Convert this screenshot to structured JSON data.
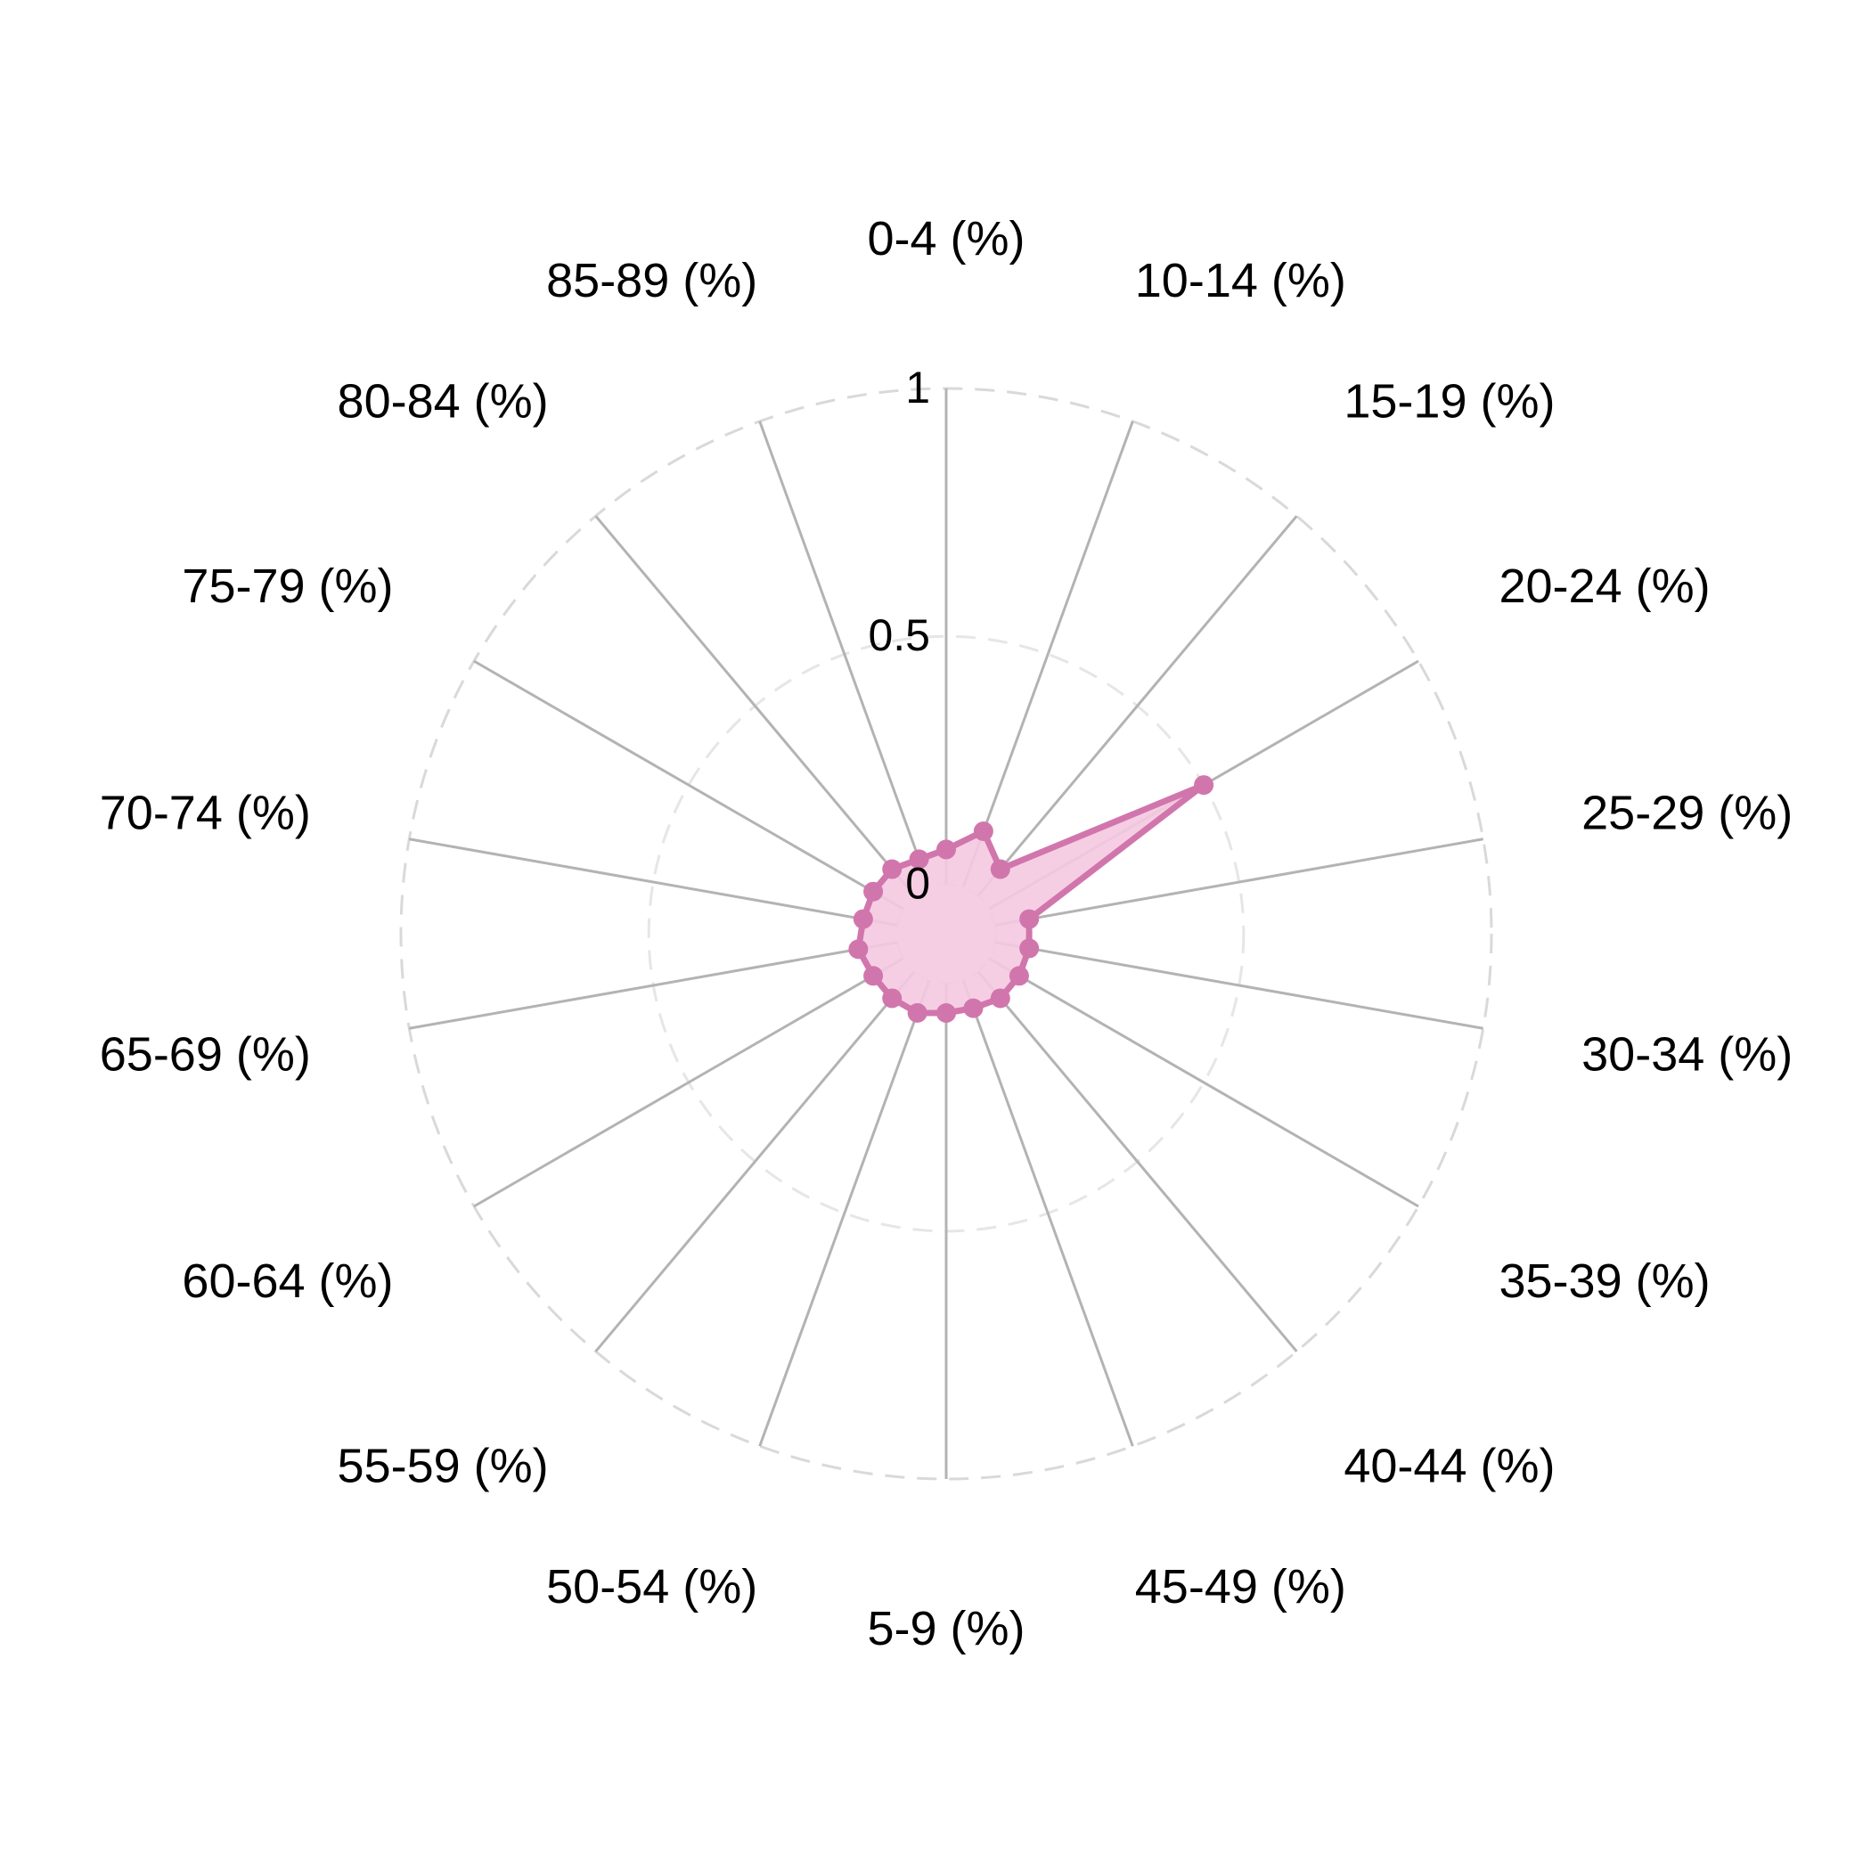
{
  "chart_data": {
    "type": "radar",
    "axes": [
      "0-4 (%)",
      "10-14 (%)",
      "15-19 (%)",
      "20-24 (%)",
      "25-29 (%)",
      "30-34 (%)",
      "35-39 (%)",
      "40-44 (%)",
      "45-49 (%)",
      "5-9 (%)",
      "50-54 (%)",
      "55-59 (%)",
      "60-64 (%)",
      "65-69 (%)",
      "70-74 (%)",
      "75-79 (%)",
      "80-84 (%)",
      "85-89 (%)"
    ],
    "series": [
      {
        "values": [
          0.07,
          0.12,
          0.07,
          0.5,
          0.07,
          0.07,
          0.07,
          0.07,
          0.06,
          0.06,
          0.07,
          0.07,
          0.07,
          0.08,
          0.07,
          0.07,
          0.07,
          0.06
        ],
        "color": "#d176ac",
        "fill": "#f5c9e1"
      }
    ],
    "rlim": [
      -0.1,
      1
    ],
    "ticks": [
      0,
      0.5,
      1
    ],
    "tick_labels": [
      "0",
      "0.5",
      "1"
    ],
    "grid": true
  }
}
